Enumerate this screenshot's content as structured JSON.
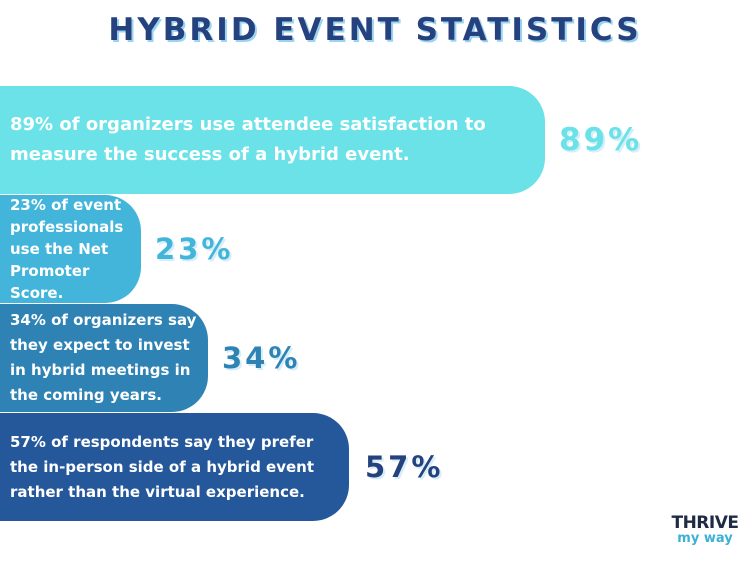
{
  "header": {
    "title": "HYBRID EVENT STATISTICS"
  },
  "chart_data": {
    "type": "bar",
    "title": "HYBRID EVENT STATISTICS",
    "categories": [
      "89% of organizers use attendee satisfaction to measure the success of a hybrid event.",
      "23% of event professionals use the Net Promoter Score.",
      "34% of organizers say they expect to invest in hybrid meetings in the coming years.",
      "57% of respondents say they prefer the in-person side of a hybrid event rather than the virtual experience."
    ],
    "values": [
      89,
      23,
      34,
      57
    ],
    "value_labels": [
      "89%",
      "23%",
      "34%",
      "57%"
    ],
    "bar_colors": [
      "#6ae2e8",
      "#43b5db",
      "#2f83b4",
      "#25589b"
    ],
    "label_colors": [
      "#6ae2e8",
      "#43b5db",
      "#2f83b4",
      "#26427e"
    ],
    "orientation": "horizontal",
    "xlim": [
      0,
      100
    ]
  },
  "logo": {
    "top": "THRIVE",
    "bottom": "my way"
  }
}
